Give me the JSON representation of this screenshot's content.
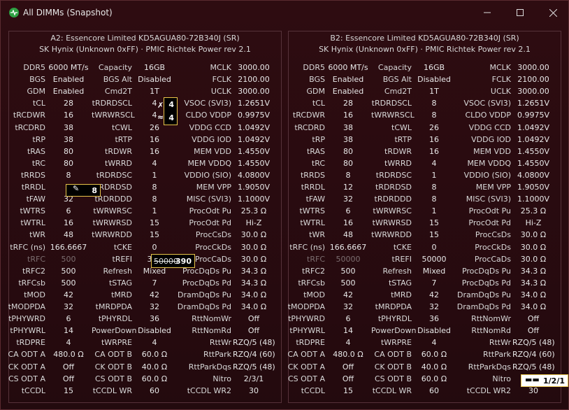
{
  "window": {
    "title": "All DIMMs (Snapshot)",
    "icon": "activity-icon"
  },
  "panels": [
    {
      "line1": "A2: Essencore Limited KD5AGUA80-72B340J (SR)",
      "line2": "SK Hynix (Unknown 0xFF) · PMIC Richtek Power rev 2.1",
      "rows": [
        [
          "DDR5",
          "6000 MT/s",
          "Capacity",
          "16GB",
          "MCLK",
          "3000.00"
        ],
        [
          "BGS",
          "Enabled",
          "BGS Alt",
          "Disabled",
          "FCLK",
          "2100.00"
        ],
        [
          "GDM",
          "Enabled",
          "Cmd2T",
          "1T",
          "UCLK",
          "3000.00"
        ],
        [
          "tCL",
          "28",
          "tRDRDSCL",
          "4",
          "VSOC (SVI3)",
          "1.2651V"
        ],
        [
          "tRCDWR",
          "16",
          "tWRWRSCL",
          "4",
          "CLDO VDDP",
          "0.9975V"
        ],
        [
          "tRCDRD",
          "38",
          "tCWL",
          "26",
          "VDDG CCD",
          "1.0492V"
        ],
        [
          "tRP",
          "38",
          "tRTP",
          "16",
          "VDDG IOD",
          "1.0492V"
        ],
        [
          "tRAS",
          "80",
          "tRDWR",
          "16",
          "MEM VDD",
          "1.4550V"
        ],
        [
          "tRC",
          "80",
          "tWRRD",
          "4",
          "MEM VDDQ",
          "1.4550V"
        ],
        [
          "tRRDS",
          "8",
          "tRDRDSC",
          "1",
          "VDDIO (SIO)",
          "4.0800V"
        ],
        [
          "tRRDL",
          "8",
          "tRDRDSD",
          "8",
          "MEM VPP",
          "1.9050V"
        ],
        [
          "tFAW",
          "32",
          "tRDRDDD",
          "8",
          "MISC (SVI3)",
          "1.1000V"
        ],
        [
          "tWTRS",
          "6",
          "tWRWRSC",
          "1",
          "ProcOdt Pu",
          "25.3 Ω"
        ],
        [
          "tWTRL",
          "16",
          "tWRWRSD",
          "15",
          "ProcOdt Pd",
          "Hi-Z"
        ],
        [
          "tWR",
          "48",
          "tWRWRDD",
          "15",
          "ProcCsDs",
          "30.0 Ω"
        ],
        [
          "tRFC (ns)",
          "166.6667",
          "tCKE",
          "0",
          "ProcCkDs",
          "30.0 Ω"
        ],
        [
          "tRFC",
          "500",
          "tREFI",
          "390",
          "ProcCaDs",
          "30.0 Ω"
        ],
        [
          "tRFC2",
          "500",
          "Refresh",
          "Mixed",
          "ProcDqDs Pu",
          "34.3 Ω"
        ],
        [
          "tRFCsb",
          "500",
          "tSTAG",
          "7",
          "ProcDqDs Pd",
          "34.3 Ω"
        ],
        [
          "tMOD",
          "42",
          "tMRD",
          "42",
          "DramDqDs Pu",
          "34.0 Ω"
        ],
        [
          "tMODPDA",
          "32",
          "tMRDPDA",
          "32",
          "DramDqDs Pd",
          "34.0 Ω"
        ],
        [
          "tPHYWRD",
          "6",
          "tPHYRDL",
          "36",
          "RttNomWr",
          "Off"
        ],
        [
          "tPHYWRL",
          "14",
          "PowerDown",
          "Disabled",
          "RttNomRd",
          "Off"
        ],
        [
          "tRDPRE",
          "4",
          "tWRPRE",
          "4",
          "RttWr",
          "RZQ/5 (48)"
        ],
        [
          "CA ODT A",
          "480.0 Ω",
          "CA ODT B",
          "60.0 Ω",
          "RttPark",
          "RZQ/4 (60)"
        ],
        [
          "CK ODT A",
          "Off",
          "CK ODT B",
          "40.0 Ω",
          "RttParkDqs",
          "RZQ/5 (48)"
        ],
        [
          "CS ODT A",
          "Off",
          "CS ODT B",
          "60.0 Ω",
          "Nitro",
          "2/3/1"
        ],
        [
          "tCCDL",
          "15",
          "tCCDL WR",
          "60",
          "tCCDL WR2",
          "30"
        ]
      ]
    },
    {
      "line1": "B2: Essencore Limited KD5AGUA80-72B340J (SR)",
      "line2": "SK Hynix (Unknown 0xFF) · PMIC Richtek Power rev 2.1",
      "rows": [
        [
          "DDR5",
          "6000 MT/s",
          "Capacity",
          "16GB",
          "MCLK",
          "3000.00"
        ],
        [
          "BGS",
          "Enabled",
          "BGS Alt",
          "Disabled",
          "FCLK",
          "2100.00"
        ],
        [
          "GDM",
          "Enabled",
          "Cmd2T",
          "1T",
          "UCLK",
          "3000.00"
        ],
        [
          "tCL",
          "28",
          "tRDRDSCL",
          "8",
          "VSOC (SVI3)",
          "1.2651V"
        ],
        [
          "tRCDWR",
          "16",
          "tWRWRSCL",
          "8",
          "CLDO VDDP",
          "0.9975V"
        ],
        [
          "tRCDRD",
          "38",
          "tCWL",
          "26",
          "VDDG CCD",
          "1.0492V"
        ],
        [
          "tRP",
          "38",
          "tRTP",
          "16",
          "VDDG IOD",
          "1.0492V"
        ],
        [
          "tRAS",
          "80",
          "tRDWR",
          "16",
          "MEM VDD",
          "1.4550V"
        ],
        [
          "tRC",
          "80",
          "tWRRD",
          "4",
          "MEM VDDQ",
          "1.4550V"
        ],
        [
          "tRRDS",
          "8",
          "tRDRDSC",
          "1",
          "VDDIO (SIO)",
          "4.0800V"
        ],
        [
          "tRRDL",
          "12",
          "tRDRDSD",
          "8",
          "MEM VPP",
          "1.9050V"
        ],
        [
          "tFAW",
          "32",
          "tRDRDDD",
          "8",
          "MISC (SVI3)",
          "1.1000V"
        ],
        [
          "tWTRS",
          "6",
          "tWRWRSC",
          "1",
          "ProcOdt Pu",
          "25.3 Ω"
        ],
        [
          "tWTRL",
          "16",
          "tWRWRSD",
          "15",
          "ProcOdt Pd",
          "Hi-Z"
        ],
        [
          "tWR",
          "48",
          "tWRWRDD",
          "15",
          "ProcCsDs",
          "30.0 Ω"
        ],
        [
          "tRFC (ns)",
          "166.6667",
          "tCKE",
          "0",
          "ProcCkDs",
          "30.0 Ω"
        ],
        [
          "tRFC",
          "50000",
          "tREFI",
          "50000",
          "ProcCaDs",
          "30.0 Ω"
        ],
        [
          "tRFC2",
          "500",
          "Refresh",
          "Mixed",
          "ProcDqDs Pu",
          "34.3 Ω"
        ],
        [
          "tRFCsb",
          "500",
          "tSTAG",
          "7",
          "ProcDqDs Pd",
          "34.3 Ω"
        ],
        [
          "tMOD",
          "42",
          "tMRD",
          "42",
          "DramDqDs Pu",
          "34.0 Ω"
        ],
        [
          "tMODPDA",
          "32",
          "tMRDPDA",
          "32",
          "DramDqDs Pd",
          "34.0 Ω"
        ],
        [
          "tPHYWRD",
          "6",
          "tPHYRDL",
          "36",
          "RttNomWr",
          "Off"
        ],
        [
          "tPHYWRL",
          "14",
          "PowerDown",
          "Disabled",
          "RttNomRd",
          "Off"
        ],
        [
          "tRDPRE",
          "4",
          "tWRPRE",
          "4",
          "RttWr",
          "RZQ/5 (48)"
        ],
        [
          "CA ODT A",
          "480.0 Ω",
          "CA ODT B",
          "60.0 Ω",
          "RttPark",
          "RZQ/4 (60)"
        ],
        [
          "CK ODT A",
          "Off",
          "CK ODT B",
          "40.0 Ω",
          "RttParkDqs",
          "RZQ/5 (48)"
        ],
        [
          "CS ODT A",
          "Off",
          "CS ODT B",
          "60.0 Ω",
          "Nitro",
          "1/2/1"
        ],
        [
          "tCCDL",
          "15",
          "tCCDL WR",
          "60",
          "tCCDL WR2",
          "30"
        ]
      ]
    }
  ],
  "overlays": {
    "a_trdrdscl": "4",
    "a_twrwrscl": "4",
    "a_trrdl": "8",
    "a_trefi": "390",
    "a_trefi_struck": "50000",
    "b_nitro": "1/2/1"
  },
  "colors": {
    "accent": "#2ea043",
    "highlight_border": "#e8c44a"
  }
}
